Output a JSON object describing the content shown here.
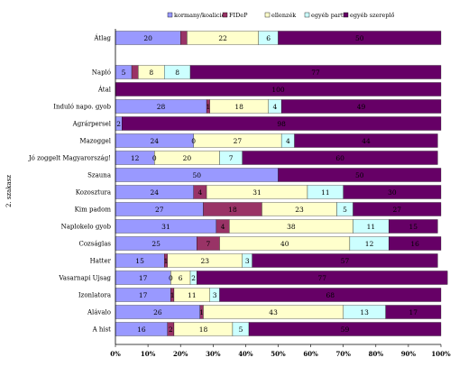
{
  "chart_data": {
    "type": "bar",
    "orientation": "horizontal",
    "stacked": "percent",
    "title": "",
    "xlabel": "",
    "ylabel": "2. szakasz",
    "xlim": [
      0,
      100
    ],
    "x_ticks": [
      "0%",
      "10%",
      "20%",
      "30%",
      "40%",
      "50%",
      "60%",
      "70%",
      "80%",
      "90%",
      "100%"
    ],
    "grid": false,
    "legend_position": "top",
    "categories": [
      "Átlag",
      "",
      "Napló",
      "Átal",
      "Induló napo. gyob",
      "Agrárpersel",
      "Mazoggel",
      "Jó zoggelt Magyarország!",
      "Szauna",
      "Kozosztura",
      "Kim padom",
      "Naplokelo gyob",
      "Cozságlas",
      "Hatter",
      "Vasarnapi Ujsag",
      "Izonlatora",
      "Alávalo",
      "A hist"
    ],
    "series": [
      {
        "name": "kormany/koalicio",
        "color": "#9999ff",
        "values": [
          20,
          null,
          5,
          0,
          28,
          2,
          24,
          12,
          50,
          24,
          27,
          31,
          25,
          15,
          17,
          17,
          26,
          16
        ]
      },
      {
        "name": "FIDeP",
        "color": "#993366",
        "values": [
          2,
          null,
          2,
          0,
          1,
          0,
          0,
          0,
          0,
          4,
          18,
          4,
          7,
          1,
          0,
          1,
          1,
          2
        ]
      },
      {
        "name": "ellenzék",
        "color": "#ffffcc",
        "values": [
          22,
          null,
          8,
          0,
          18,
          0,
          27,
          20,
          0,
          31,
          23,
          38,
          40,
          23,
          6,
          11,
          43,
          18
        ]
      },
      {
        "name": "egyéb part",
        "color": "#ccffff",
        "values": [
          6,
          null,
          8,
          0,
          4,
          0,
          4,
          7,
          0,
          11,
          5,
          11,
          12,
          3,
          2,
          3,
          13,
          5
        ]
      },
      {
        "name": "egyéb szereplő",
        "color": "#660066",
        "values": [
          50,
          null,
          77,
          100,
          49,
          98,
          44,
          60,
          50,
          30,
          27,
          15,
          16,
          57,
          77,
          68,
          17,
          59
        ]
      }
    ],
    "value_labels": [
      [
        "20",
        "",
        "22",
        "6",
        "50"
      ],
      [
        "",
        "",
        "",
        "",
        ""
      ],
      [
        "5",
        "",
        "8",
        "8",
        "77"
      ],
      [
        "",
        "",
        "",
        "",
        "100"
      ],
      [
        "28",
        "1",
        "18",
        "4",
        "49"
      ],
      [
        "2",
        "",
        "",
        "",
        "98"
      ],
      [
        "24",
        "0",
        "27",
        "4",
        "44"
      ],
      [
        "12",
        "0",
        "20",
        "7",
        "60"
      ],
      [
        "50",
        "",
        "",
        "",
        "50"
      ],
      [
        "24",
        "4",
        "31",
        "11",
        "30"
      ],
      [
        "27",
        "18",
        "23",
        "5",
        "27"
      ],
      [
        "31",
        "4",
        "38",
        "11",
        "15"
      ],
      [
        "25",
        "7",
        "40",
        "12",
        "16"
      ],
      [
        "15",
        "1",
        "23",
        "3",
        "57"
      ],
      [
        "17",
        "0",
        "6",
        "2",
        "77"
      ],
      [
        "17",
        "1",
        "11",
        "3",
        "68"
      ],
      [
        "26",
        "1",
        "43",
        "13",
        "17"
      ],
      [
        "16",
        "2",
        "18",
        "5",
        "59"
      ]
    ]
  }
}
